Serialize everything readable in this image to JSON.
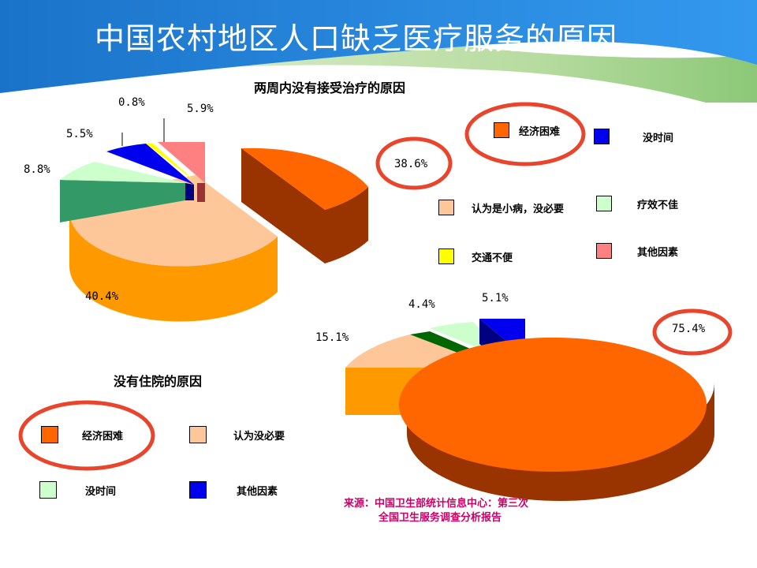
{
  "slide_title": "中国农村地区人口缺乏医疗服务的原因",
  "highlight_color": "#e8452c",
  "source": {
    "line1": "来源：中国卫生部统计信息中心：第三次",
    "line2": "全国卫生服务调查分析报告"
  },
  "chart_data": [
    {
      "type": "pie",
      "title": "两周内没有接受治疗的原因",
      "categories": [
        "经济困难",
        "认为是小病，没必要",
        "疗效不佳",
        "没时间",
        "交通不便",
        "其他因素"
      ],
      "values": [
        38.6,
        40.4,
        8.8,
        5.5,
        0.8,
        5.9
      ],
      "labels": [
        "38.6%",
        "40.4%",
        "8.8%",
        "5.5%",
        "0.8%",
        "5.9%"
      ],
      "legend": {
        "items": [
          {
            "label": "经济困难",
            "color": "#ff6600"
          },
          {
            "label": "没时间",
            "color": "#0000ee"
          },
          {
            "label": "认为是小病，没必要",
            "color": "#fdc79a"
          },
          {
            "label": "疗效不佳",
            "color": "#ccffcc"
          },
          {
            "label": "交通不便",
            "color": "#ffff00"
          },
          {
            "label": "其他因素",
            "color": "#ff8080"
          }
        ]
      }
    },
    {
      "type": "pie",
      "title": "没有住院的原因",
      "categories": [
        "经济困难",
        "认为没必要",
        "没时间",
        "其他因素"
      ],
      "values": [
        75.4,
        15.1,
        4.4,
        5.1
      ],
      "labels": [
        "75.4%",
        "15.1%",
        "4.4%",
        "5.1%"
      ],
      "legend": {
        "items": [
          {
            "label": "经济困难",
            "color": "#ff6600"
          },
          {
            "label": "认为没必要",
            "color": "#fdc79a"
          },
          {
            "label": "没时间",
            "color": "#ccffcc"
          },
          {
            "label": "其他因素",
            "color": "#0000ee"
          }
        ]
      }
    }
  ]
}
